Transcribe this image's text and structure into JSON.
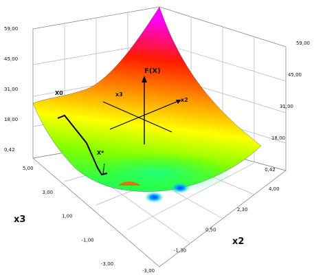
{
  "chart_data": {
    "type": "surface3d",
    "title": "",
    "xlabel": "x3",
    "ylabel": "x2",
    "zlabel": "",
    "x3_ticks": [
      "5,00",
      "3,00",
      "1,00",
      "-1,00",
      "-3,00"
    ],
    "x2_ticks": [
      "-3,00",
      "-1,30",
      "0,50",
      "2,30",
      "4,00"
    ],
    "z_ticks_left": [
      "59,00",
      "45,00",
      "31,00",
      "18,00",
      "0,42"
    ],
    "z_ticks_right": [
      "59,00",
      "45,00",
      "31,00",
      "18,00",
      "0,42"
    ],
    "xlim": [
      -3,
      5
    ],
    "ylim": [
      -3,
      4
    ],
    "zlim": [
      0.42,
      59
    ],
    "grid": true,
    "colormap": [
      "#00ff60",
      "#ffff00",
      "#ff8000",
      "#ff0000",
      "#ff00ff"
    ],
    "annotations": {
      "start_point": "X0",
      "optimum_point": "X*",
      "inset_axis_z": "F(X)",
      "inset_axis_x3": "x3",
      "inset_axis_x2": "x2"
    },
    "minima": [
      {
        "x3": -1.0,
        "x2": -1.2
      },
      {
        "x3": 0.8,
        "x2": 0.9
      }
    ]
  }
}
